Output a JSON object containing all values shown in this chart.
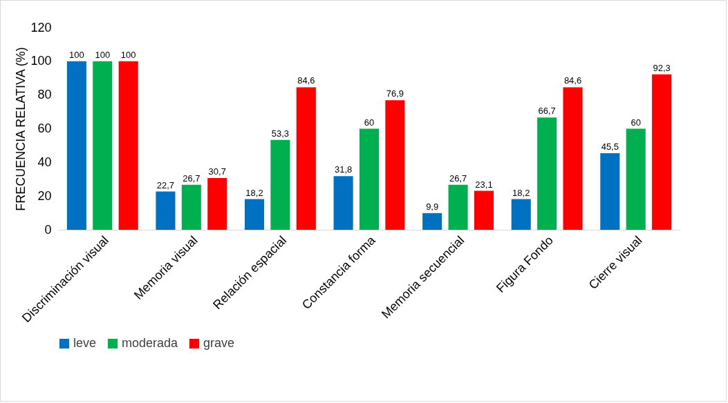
{
  "chart_data": {
    "type": "bar",
    "ylabel": "FRECUENCIA RELATIVA (%)",
    "categories": [
      "Discriminación visual",
      "Memoria visual",
      "Relación espacial",
      "Constancia forma",
      "Memoria secuencial",
      "Figura Fondo",
      "Cierre visual"
    ],
    "series": [
      {
        "name": "leve",
        "color": "#0070c0",
        "values": [
          100,
          22.7,
          18.2,
          31.8,
          9.9,
          18.2,
          45.5
        ],
        "value_labels": [
          "100",
          "22,7",
          "18,2",
          "31,8",
          "9,9",
          "18,2",
          "45,5"
        ]
      },
      {
        "name": "moderada",
        "color": "#00b050",
        "values": [
          100,
          26.7,
          53.3,
          60,
          26.7,
          66.7,
          60
        ],
        "value_labels": [
          "100",
          "26,7",
          "53,3",
          "60",
          "26,7",
          "66,7",
          "60"
        ]
      },
      {
        "name": "grave",
        "color": "#ff0000",
        "values": [
          100,
          30.7,
          84.6,
          76.9,
          23.1,
          84.6,
          92.3
        ],
        "value_labels": [
          "100",
          "30,7",
          "84,6",
          "76,9",
          "23,1",
          "84,6",
          "92,3"
        ]
      }
    ],
    "ylim": [
      0,
      120
    ],
    "yticks": [
      0,
      20,
      40,
      60,
      80,
      100,
      120
    ],
    "grid": false,
    "legend": "bottom"
  }
}
